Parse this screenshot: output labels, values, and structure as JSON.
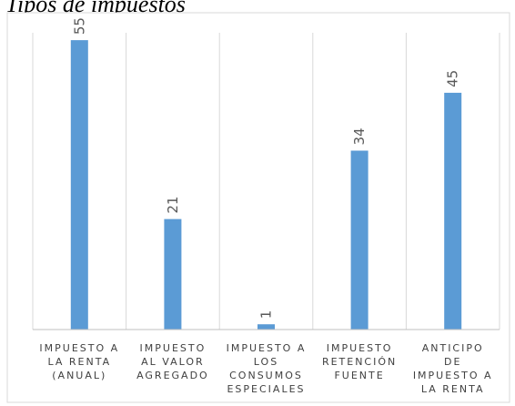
{
  "chart_data": {
    "type": "bar",
    "title": "Tipos de impuestos",
    "categories": [
      [
        "IMPUESTO A",
        "LA RENTA",
        "(ANUAL)"
      ],
      [
        "IMPUESTO",
        "AL VALOR",
        "AGREGADO"
      ],
      [
        "IMPUESTO A",
        "LOS",
        "CONSUMOS",
        "ESPECIALES"
      ],
      [
        "IMPUESTO",
        "RETENCIÓN",
        "FUENTE"
      ],
      [
        "ANTICIPO",
        "DE",
        "IMPUESTO A",
        "LA RENTA"
      ]
    ],
    "values": [
      55,
      21,
      1,
      34,
      45
    ],
    "data_labels": [
      "55",
      "21",
      "1",
      "34",
      "45"
    ],
    "ylim": [
      0,
      59
    ],
    "colors": {
      "bar": "#5b9bd5"
    },
    "grid": "vertical separators",
    "legend": "none"
  }
}
